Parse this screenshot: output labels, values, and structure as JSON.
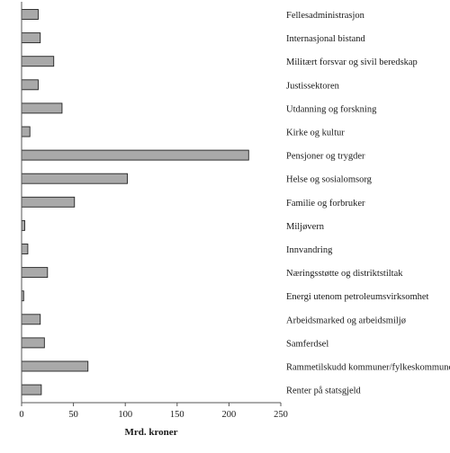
{
  "chart_data": {
    "type": "bar",
    "orientation": "horizontal",
    "categories": [
      "Felles­administrasjon",
      "Internasjonal bistand",
      "Militært forsvar og sivil beredskap",
      "Justissektoren",
      "Utdanning og forskning",
      "Kirke og kultur",
      "Pensjoner og trygder",
      "Helse og sosialomsorg",
      "Familie og forbruker",
      "Miljøvern",
      "Innvandring",
      "Næringsstøtte og distriktstiltak",
      "Energi utenom petroleumsvirksomhet",
      "Arbeidsmarked og arbeidsmiljø",
      "Samferdsel",
      "Rammetilskudd kommuner/fylkeskommuner",
      "Renter på statsgjeld"
    ],
    "values": [
      16,
      18,
      31,
      16,
      39,
      8,
      219,
      102,
      51,
      3,
      6,
      25,
      2,
      18,
      22,
      64,
      19
    ],
    "xlabel": "Mrd. kroner",
    "ylabel": "",
    "title": "",
    "xlim": [
      0,
      250
    ],
    "xticks": [
      "0",
      "50",
      "100",
      "150",
      "200",
      "250"
    ],
    "grid": false,
    "colors": {
      "bar_fill": "#a9a9a9",
      "bar_stroke": "#222222",
      "axis": "#555555"
    }
  }
}
